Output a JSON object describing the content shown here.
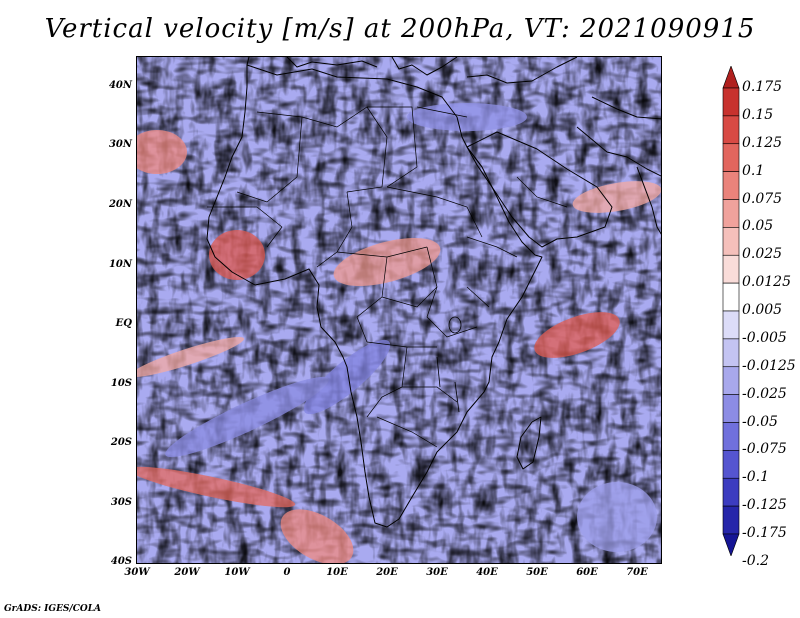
{
  "title": "Vertical velocity [m/s] at 200hPa, VT: 2021090915",
  "map": {
    "lat_labels": [
      "40N",
      "30N",
      "20N",
      "10N",
      "EQ",
      "10S",
      "20S",
      "30S",
      "40S"
    ],
    "lon_labels": [
      "30W",
      "20W",
      "10W",
      "0",
      "10E",
      "20E",
      "30E",
      "40E",
      "50E",
      "60E",
      "70E"
    ]
  },
  "colorbar": {
    "levels": [
      "0.175",
      "0.15",
      "0.125",
      "0.1",
      "0.075",
      "0.05",
      "0.025",
      "0.0125",
      "0.005",
      "-0.005",
      "-0.0125",
      "-0.025",
      "-0.05",
      "-0.075",
      "-0.1",
      "-0.125",
      "-0.175",
      "-0.2"
    ],
    "colors": [
      "#b0201e",
      "#c8322e",
      "#d84a44",
      "#e2665e",
      "#ea837b",
      "#f0a29c",
      "#f5c0bb",
      "#f9dcd9",
      "#ffffff",
      "#dcdcf8",
      "#c4c4f2",
      "#a8a8ec",
      "#8c8ce4",
      "#7070dc",
      "#5555d0",
      "#3c3cc0",
      "#2626aa",
      "#151595"
    ],
    "top_arrow_color": "#a01818",
    "bottom_arrow_color": "#10108a"
  },
  "credit": "GrADS: IGES/COLA",
  "colors": {
    "positive": "#d84a44",
    "negative": "#5555d0",
    "coastline": "#000000"
  }
}
